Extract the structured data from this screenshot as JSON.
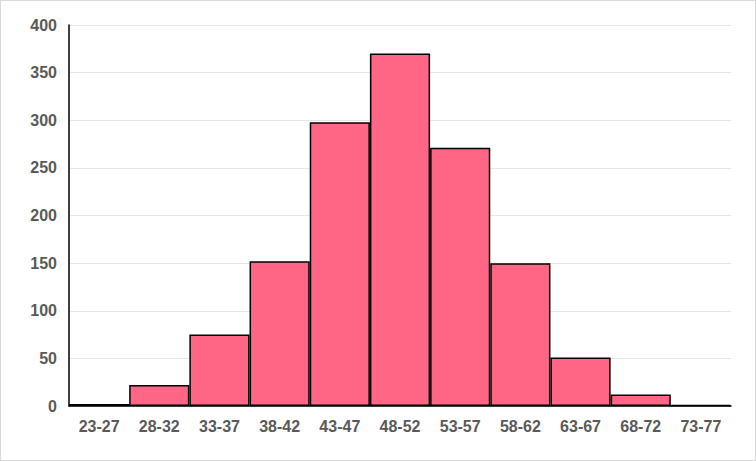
{
  "chart_data": {
    "type": "bar",
    "categories": [
      "23-27",
      "28-32",
      "33-37",
      "38-42",
      "43-47",
      "48-52",
      "53-57",
      "58-62",
      "63-67",
      "68-72",
      "73-77"
    ],
    "values": [
      2,
      22,
      75,
      152,
      298,
      370,
      271,
      150,
      51,
      12,
      1
    ],
    "color": "#ff6685",
    "ylim": [
      0,
      400
    ],
    "yticks": [
      0,
      50,
      100,
      150,
      200,
      250,
      300,
      350,
      400
    ],
    "grid": true
  }
}
